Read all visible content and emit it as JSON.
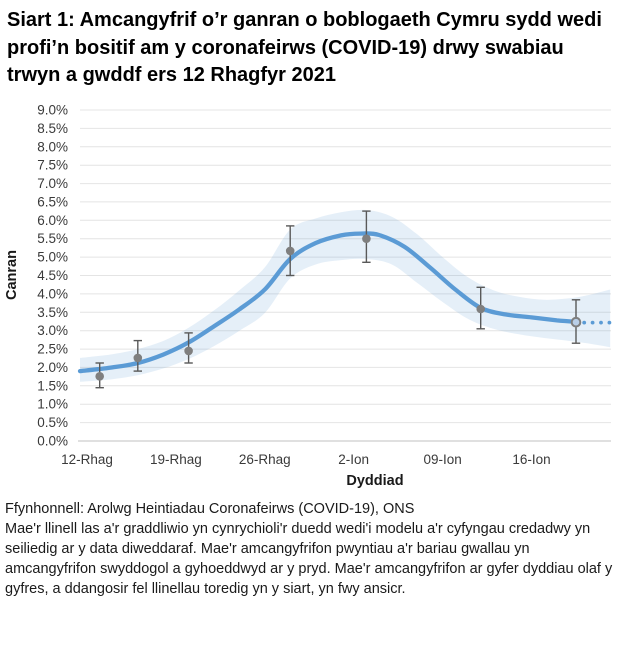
{
  "title": "Siart 1: Amcangyfrif o’r ganran o boblogaeth Cymru sydd wedi profi’n bositif am y coronafeirws (COVID-19) drwy swabiau trwyn a gwddf ers 12 Rhagfyr 2021",
  "footer": {
    "source": "Ffynhonnell: Arolwg Heintiadau Coronafeirws (COVID-19), ONS",
    "note": "Mae'r llinell las a'r graddliwio yn cynrychioli'r duedd wedi'i modelu a'r cyfyngau credadwy yn seiliedig ar y data diweddaraf. Mae'r amcangyfrifon pwyntiau a'r bariau gwallau yn amcangyfrifon swyddogol a gyhoeddwyd ar y pryd. Mae'r amcangyfrifon ar gyfer dyddiau olaf y gyfres, a ddangosir fel llinellau toredig yn y siart, yn fwy ansicr."
  },
  "chart_data": {
    "type": "line",
    "xlabel": "Dyddiad",
    "ylabel": "Canran",
    "ylim": [
      0,
      9
    ],
    "grid": true,
    "legend_position": "none",
    "colors": {
      "trend_line": "#5B9BD5",
      "confidence_band": "#5B9BD5",
      "confidence_band_opacity": 0.16,
      "point": "#7F7F7F",
      "open_point_fill": "#b9cfe8",
      "error_bar": "#595959",
      "gridline": "#e4e4e4",
      "axis_line": "#c2c2c2",
      "tick_text": "#3a3a3a"
    },
    "y_ticks": [
      {
        "value": 0.0,
        "label": "0.0%"
      },
      {
        "value": 0.5,
        "label": "0.5%"
      },
      {
        "value": 1.0,
        "label": "1.0%"
      },
      {
        "value": 1.5,
        "label": "1.5%"
      },
      {
        "value": 2.0,
        "label": "2.0%"
      },
      {
        "value": 2.5,
        "label": "2.5%"
      },
      {
        "value": 3.0,
        "label": "3.0%"
      },
      {
        "value": 3.5,
        "label": "3.5%"
      },
      {
        "value": 4.0,
        "label": "4.0%"
      },
      {
        "value": 4.5,
        "label": "4.5%"
      },
      {
        "value": 5.0,
        "label": "5.0%"
      },
      {
        "value": 5.5,
        "label": "5.5%"
      },
      {
        "value": 6.0,
        "label": "6.0%"
      },
      {
        "value": 6.5,
        "label": "6.5%"
      },
      {
        "value": 7.0,
        "label": "7.0%"
      },
      {
        "value": 7.5,
        "label": "7.5%"
      },
      {
        "value": 8.0,
        "label": "8.0%"
      },
      {
        "value": 8.5,
        "label": "8.5%"
      },
      {
        "value": 9.0,
        "label": "9.0%"
      }
    ],
    "x_ticks": [
      {
        "day": 0,
        "label": "12-Rhag"
      },
      {
        "day": 7,
        "label": "19-Rhag"
      },
      {
        "day": 14,
        "label": "26-Rhag"
      },
      {
        "day": 21,
        "label": "2-Ion"
      },
      {
        "day": 28,
        "label": "09-Ion"
      },
      {
        "day": 35,
        "label": "16-Ion"
      }
    ],
    "trend_line": {
      "name": "modelled-trend",
      "points": [
        [
          -0.55,
          1.9
        ],
        [
          0,
          1.92
        ],
        [
          2,
          2.0
        ],
        [
          4,
          2.12
        ],
        [
          6,
          2.35
        ],
        [
          8,
          2.68
        ],
        [
          10,
          3.12
        ],
        [
          12,
          3.58
        ],
        [
          14,
          4.12
        ],
        [
          16,
          4.95
        ],
        [
          18,
          5.38
        ],
        [
          20,
          5.59
        ],
        [
          21.5,
          5.64
        ],
        [
          23,
          5.6
        ],
        [
          25,
          5.28
        ],
        [
          27,
          4.72
        ],
        [
          29,
          4.12
        ],
        [
          31,
          3.62
        ],
        [
          33,
          3.44
        ],
        [
          35,
          3.36
        ],
        [
          37,
          3.28
        ],
        [
          38.5,
          3.24
        ]
      ]
    },
    "dotted_extension": {
      "name": "uncertain-trend-dots",
      "points": [
        [
          39.15,
          3.22
        ],
        [
          39.81,
          3.22
        ],
        [
          40.47,
          3.22
        ],
        [
          41.13,
          3.22
        ]
      ]
    },
    "confidence_band": {
      "name": "credible-interval",
      "points": [
        [
          -0.55,
          1.61,
          2.26
        ],
        [
          2,
          1.68,
          2.36
        ],
        [
          4,
          1.79,
          2.5
        ],
        [
          6,
          1.97,
          2.72
        ],
        [
          8,
          2.23,
          3.08
        ],
        [
          10,
          2.58,
          3.55
        ],
        [
          12,
          3.0,
          4.1
        ],
        [
          14,
          3.48,
          4.72
        ],
        [
          16,
          4.42,
          5.75
        ],
        [
          18,
          4.8,
          6.05
        ],
        [
          20,
          4.92,
          6.22
        ],
        [
          22,
          4.95,
          6.28
        ],
        [
          24,
          4.8,
          6.1
        ],
        [
          26,
          4.3,
          5.62
        ],
        [
          28,
          3.78,
          5.0
        ],
        [
          30,
          3.32,
          4.45
        ],
        [
          32,
          3.05,
          4.1
        ],
        [
          34,
          2.9,
          3.92
        ],
        [
          36,
          2.8,
          3.84
        ],
        [
          38,
          2.72,
          3.88
        ],
        [
          39.5,
          2.65,
          3.97
        ],
        [
          41.2,
          2.55,
          4.12
        ]
      ]
    },
    "official_estimates": [
      {
        "day": 1,
        "value": 1.76,
        "lo": 1.45,
        "hi": 2.12,
        "open": false
      },
      {
        "day": 4,
        "value": 2.26,
        "lo": 1.9,
        "hi": 2.73,
        "open": false
      },
      {
        "day": 8,
        "value": 2.45,
        "lo": 2.12,
        "hi": 2.94,
        "open": false
      },
      {
        "day": 16,
        "value": 5.17,
        "lo": 4.5,
        "hi": 5.85,
        "open": false
      },
      {
        "day": 22,
        "value": 5.5,
        "lo": 4.86,
        "hi": 6.25,
        "open": false
      },
      {
        "day": 31,
        "value": 3.59,
        "lo": 3.05,
        "hi": 4.18,
        "open": false
      },
      {
        "day": 38.5,
        "value": 3.23,
        "lo": 2.66,
        "hi": 3.84,
        "open": true
      }
    ]
  }
}
